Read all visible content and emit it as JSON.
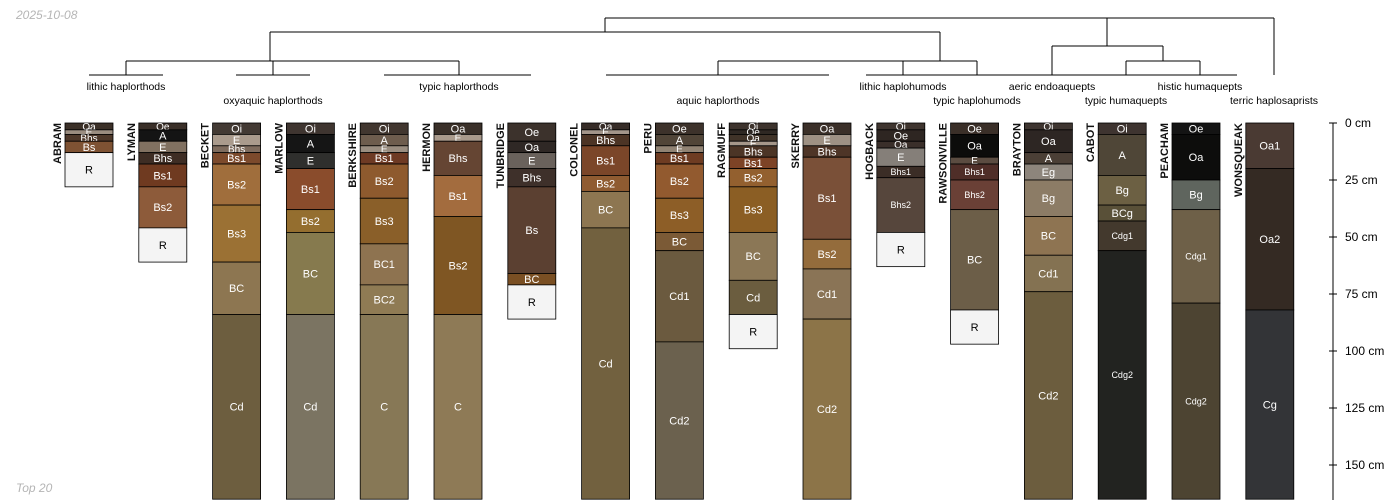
{
  "date_stamp": "2025-10-08",
  "footer_stamp": "Top 20",
  "depth_axis": {
    "unit": "cm",
    "max_depth": 165,
    "ticks": [
      {
        "depth": 0,
        "label": "0 cm"
      },
      {
        "depth": 25,
        "label": "25 cm"
      },
      {
        "depth": 50,
        "label": "50 cm"
      },
      {
        "depth": 75,
        "label": "75 cm"
      },
      {
        "depth": 100,
        "label": "100 cm"
      },
      {
        "depth": 125,
        "label": "125 cm"
      },
      {
        "depth": 150,
        "label": "150 cm"
      }
    ]
  },
  "dendrogram": {
    "groups": [
      {
        "label": "lithic haplorthods",
        "members": [
          "ABRAM",
          "LYMAN"
        ]
      },
      {
        "label": "oxyaquic haplorthods",
        "members": [
          "BECKET",
          "MARLOW"
        ]
      },
      {
        "label": "typic haplorthods",
        "members": [
          "BERKSHIRE",
          "HERMON",
          "TUNBRIDGE"
        ]
      },
      {
        "label": "aquic haplorthods",
        "members": [
          "COLONEL",
          "PERU",
          "RAGMUFF",
          "SKERRY"
        ]
      },
      {
        "label": "lithic haplohumods",
        "members": [
          "HOGBACK"
        ]
      },
      {
        "label": "typic haplohumods",
        "members": [
          "RAWSONVILLE"
        ]
      },
      {
        "label": "aeric endoaquepts",
        "members": [
          "BRAYTON"
        ]
      },
      {
        "label": "typic humaquepts",
        "members": [
          "CABOT"
        ]
      },
      {
        "label": "histic humaquepts",
        "members": [
          "PEACHAM"
        ]
      },
      {
        "label": "terric haplosaprists",
        "members": [
          "WONSQUEAK"
        ]
      }
    ]
  },
  "profiles": [
    {
      "name": "ABRAM",
      "horizons": [
        {
          "name": "Oa",
          "top": 0,
          "bottom": 3,
          "color": "#3b3028"
        },
        {
          "name": "E",
          "top": 3,
          "bottom": 5,
          "color": "#9b8d80"
        },
        {
          "name": "Bhs",
          "top": 5,
          "bottom": 8,
          "color": "#4e382a"
        },
        {
          "name": "Bs",
          "top": 8,
          "bottom": 13,
          "color": "#7e5233"
        },
        {
          "name": "R",
          "top": 13,
          "bottom": 28,
          "color": "#f4f4f4"
        }
      ]
    },
    {
      "name": "LYMAN",
      "horizons": [
        {
          "name": "Oe",
          "top": 0,
          "bottom": 3,
          "color": "#3a2f28"
        },
        {
          "name": "A",
          "top": 3,
          "bottom": 8,
          "color": "#141414"
        },
        {
          "name": "E",
          "top": 8,
          "bottom": 13,
          "color": "#817161"
        },
        {
          "name": "Bhs",
          "top": 13,
          "bottom": 18,
          "color": "#3e2d24"
        },
        {
          "name": "Bs1",
          "top": 18,
          "bottom": 28,
          "color": "#6f3a20"
        },
        {
          "name": "Bs2",
          "top": 28,
          "bottom": 46,
          "color": "#8d5b3a"
        },
        {
          "name": "R",
          "top": 46,
          "bottom": 61,
          "color": "#f4f4f4"
        }
      ]
    },
    {
      "name": "BECKET",
      "horizons": [
        {
          "name": "Oi",
          "top": 0,
          "bottom": 5,
          "color": "#433a34"
        },
        {
          "name": "E",
          "top": 5,
          "bottom": 10,
          "color": "#aa9b8d"
        },
        {
          "name": "Bhs",
          "top": 10,
          "bottom": 13,
          "color": "#7f6c5e"
        },
        {
          "name": "Bs1",
          "top": 13,
          "bottom": 18,
          "color": "#7c4a2c"
        },
        {
          "name": "Bs2",
          "top": 18,
          "bottom": 36,
          "color": "#a06e3c"
        },
        {
          "name": "Bs3",
          "top": 36,
          "bottom": 61,
          "color": "#9b7134"
        },
        {
          "name": "BC",
          "top": 61,
          "bottom": 84,
          "color": "#8d7651"
        },
        {
          "name": "Cd",
          "top": 84,
          "bottom": 165,
          "color": "#6d5e3f"
        }
      ]
    },
    {
      "name": "MARLOW",
      "horizons": [
        {
          "name": "Oi",
          "top": 0,
          "bottom": 5,
          "color": "#3f3530"
        },
        {
          "name": "A",
          "top": 5,
          "bottom": 13,
          "color": "#151515"
        },
        {
          "name": "E",
          "top": 13,
          "bottom": 20,
          "color": "#2f2f2d"
        },
        {
          "name": "Bs1",
          "top": 20,
          "bottom": 38,
          "color": "#8a4c2c"
        },
        {
          "name": "Bs2",
          "top": 38,
          "bottom": 48,
          "color": "#946e2f"
        },
        {
          "name": "BC",
          "top": 48,
          "bottom": 84,
          "color": "#867a4e"
        },
        {
          "name": "Cd",
          "top": 84,
          "bottom": 165,
          "color": "#7b7462"
        }
      ]
    },
    {
      "name": "BERKSHIRE",
      "horizons": [
        {
          "name": "Oi",
          "top": 0,
          "bottom": 5,
          "color": "#41362f"
        },
        {
          "name": "A",
          "top": 5,
          "bottom": 10,
          "color": "#6e5d4e"
        },
        {
          "name": "E",
          "top": 10,
          "bottom": 13,
          "color": "#9b8e81"
        },
        {
          "name": "Bs1",
          "top": 13,
          "bottom": 18,
          "color": "#6e3a24"
        },
        {
          "name": "Bs2",
          "top": 18,
          "bottom": 33,
          "color": "#8e5a2e"
        },
        {
          "name": "Bs3",
          "top": 33,
          "bottom": 53,
          "color": "#8a5f29"
        },
        {
          "name": "BC1",
          "top": 53,
          "bottom": 71,
          "color": "#8e7350"
        },
        {
          "name": "BC2",
          "top": 71,
          "bottom": 84,
          "color": "#8f7b54"
        },
        {
          "name": "C",
          "top": 84,
          "bottom": 165,
          "color": "#877856"
        }
      ]
    },
    {
      "name": "HERMON",
      "horizons": [
        {
          "name": "Oa",
          "top": 0,
          "bottom": 5,
          "color": "#3a3029"
        },
        {
          "name": "E",
          "top": 5,
          "bottom": 8,
          "color": "#a99a8c"
        },
        {
          "name": "Bhs",
          "top": 8,
          "bottom": 23,
          "color": "#654533"
        },
        {
          "name": "Bs1",
          "top": 23,
          "bottom": 41,
          "color": "#a36c3e"
        },
        {
          "name": "Bs2",
          "top": 41,
          "bottom": 84,
          "color": "#7f5623"
        },
        {
          "name": "C",
          "top": 84,
          "bottom": 165,
          "color": "#8e7a56"
        }
      ]
    },
    {
      "name": "TUNBRIDGE",
      "horizons": [
        {
          "name": "Oe",
          "top": 0,
          "bottom": 8,
          "color": "#3c322c"
        },
        {
          "name": "Oa",
          "top": 8,
          "bottom": 13,
          "color": "#2f2825"
        },
        {
          "name": "E",
          "top": 13,
          "bottom": 20,
          "color": "#6a625c"
        },
        {
          "name": "Bhs",
          "top": 20,
          "bottom": 28,
          "color": "#3e302a"
        },
        {
          "name": "Bs",
          "top": 28,
          "bottom": 66,
          "color": "#5b4031"
        },
        {
          "name": "BC",
          "top": 66,
          "bottom": 71,
          "color": "#7a4f23"
        },
        {
          "name": "R",
          "top": 71,
          "bottom": 86,
          "color": "#f4f4f4"
        }
      ]
    },
    {
      "name": "COLONEL",
      "horizons": [
        {
          "name": "Oa",
          "top": 0,
          "bottom": 3,
          "color": "#362c27"
        },
        {
          "name": "E",
          "top": 3,
          "bottom": 5,
          "color": "#a2958a"
        },
        {
          "name": "Bhs",
          "top": 5,
          "bottom": 10,
          "color": "#4c3425"
        },
        {
          "name": "Bs1",
          "top": 10,
          "bottom": 23,
          "color": "#7b4629"
        },
        {
          "name": "Bs2",
          "top": 23,
          "bottom": 30,
          "color": "#8f5b31"
        },
        {
          "name": "BC",
          "top": 30,
          "bottom": 46,
          "color": "#8d7651"
        },
        {
          "name": "Cd",
          "top": 46,
          "bottom": 165,
          "color": "#72613f"
        }
      ]
    },
    {
      "name": "PERU",
      "horizons": [
        {
          "name": "Oe",
          "top": 0,
          "bottom": 5,
          "color": "#3d322b"
        },
        {
          "name": "A",
          "top": 5,
          "bottom": 10,
          "color": "#514538"
        },
        {
          "name": "E",
          "top": 10,
          "bottom": 13,
          "color": "#918373"
        },
        {
          "name": "Bs1",
          "top": 13,
          "bottom": 18,
          "color": "#6e3c22"
        },
        {
          "name": "Bs2",
          "top": 18,
          "bottom": 33,
          "color": "#925a2f"
        },
        {
          "name": "Bs3",
          "top": 33,
          "bottom": 48,
          "color": "#8d5e27"
        },
        {
          "name": "BC",
          "top": 48,
          "bottom": 56,
          "color": "#7b5a36"
        },
        {
          "name": "Cd1",
          "top": 56,
          "bottom": 96,
          "color": "#6b5a3f"
        },
        {
          "name": "Cd2",
          "top": 96,
          "bottom": 165,
          "color": "#6b614e"
        }
      ]
    },
    {
      "name": "RAGMUFF",
      "horizons": [
        {
          "name": "Oi",
          "top": 0,
          "bottom": 3,
          "color": "#3d332d"
        },
        {
          "name": "Oe",
          "top": 3,
          "bottom": 5,
          "color": "#2f2823"
        },
        {
          "name": "Oa",
          "top": 5,
          "bottom": 8,
          "color": "#403328"
        },
        {
          "name": "E",
          "top": 8,
          "bottom": 10,
          "color": "#a5978a"
        },
        {
          "name": "Bhs",
          "top": 10,
          "bottom": 15,
          "color": "#4c3526"
        },
        {
          "name": "Bs1",
          "top": 15,
          "bottom": 20,
          "color": "#7d4326"
        },
        {
          "name": "Bs2",
          "top": 20,
          "bottom": 28,
          "color": "#93602f"
        },
        {
          "name": "Bs3",
          "top": 28,
          "bottom": 48,
          "color": "#8b5e24"
        },
        {
          "name": "BC",
          "top": 48,
          "bottom": 69,
          "color": "#8b7756"
        },
        {
          "name": "Cd",
          "top": 69,
          "bottom": 84,
          "color": "#6b5d3f"
        },
        {
          "name": "R",
          "top": 84,
          "bottom": 99,
          "color": "#f4f4f4"
        }
      ]
    },
    {
      "name": "SKERRY",
      "horizons": [
        {
          "name": "Oa",
          "top": 0,
          "bottom": 5,
          "color": "#3b3029"
        },
        {
          "name": "E",
          "top": 5,
          "bottom": 10,
          "color": "#9e9184"
        },
        {
          "name": "Bhs",
          "top": 10,
          "bottom": 15,
          "color": "#4e3527"
        },
        {
          "name": "Bs1",
          "top": 15,
          "bottom": 51,
          "color": "#7a5038"
        },
        {
          "name": "Bs2",
          "top": 51,
          "bottom": 64,
          "color": "#946c3c"
        },
        {
          "name": "Cd1",
          "top": 64,
          "bottom": 86,
          "color": "#8a7456"
        },
        {
          "name": "Cd2",
          "top": 86,
          "bottom": 165,
          "color": "#8c7448"
        }
      ]
    },
    {
      "name": "HOGBACK",
      "horizons": [
        {
          "name": "Oi",
          "top": 0,
          "bottom": 3,
          "color": "#3f352f"
        },
        {
          "name": "Oe",
          "top": 3,
          "bottom": 8,
          "color": "#2e2622"
        },
        {
          "name": "Oa",
          "top": 8,
          "bottom": 11,
          "color": "#3a2f2a"
        },
        {
          "name": "E",
          "top": 11,
          "bottom": 19,
          "color": "#857f79"
        },
        {
          "name": "Bhs1",
          "top": 19,
          "bottom": 24,
          "color": "#3b2d26"
        },
        {
          "name": "Bhs2",
          "top": 24,
          "bottom": 48,
          "color": "#56463c"
        },
        {
          "name": "R",
          "top": 48,
          "bottom": 63,
          "color": "#f4f4f4"
        }
      ]
    },
    {
      "name": "RAWSONVILLE",
      "horizons": [
        {
          "name": "Oe",
          "top": 0,
          "bottom": 5,
          "color": "#3a2f28"
        },
        {
          "name": "Oa",
          "top": 5,
          "bottom": 15,
          "color": "#0c0c0b"
        },
        {
          "name": "E",
          "top": 15,
          "bottom": 18,
          "color": "#5b4c41"
        },
        {
          "name": "Bhs1",
          "top": 18,
          "bottom": 25,
          "color": "#4f2e28"
        },
        {
          "name": "Bhs2",
          "top": 25,
          "bottom": 38,
          "color": "#6a4036"
        },
        {
          "name": "BC",
          "top": 38,
          "bottom": 82,
          "color": "#6c5e48"
        },
        {
          "name": "R",
          "top": 82,
          "bottom": 97,
          "color": "#f4f4f4"
        }
      ]
    },
    {
      "name": "BRAYTON",
      "horizons": [
        {
          "name": "Oi",
          "top": 0,
          "bottom": 3,
          "color": "#3e3530"
        },
        {
          "name": "Oa",
          "top": 3,
          "bottom": 13,
          "color": "#2d2623"
        },
        {
          "name": "A",
          "top": 13,
          "bottom": 18,
          "color": "#4b3f36"
        },
        {
          "name": "Eg",
          "top": 18,
          "bottom": 25,
          "color": "#8d857c"
        },
        {
          "name": "Bg",
          "top": 25,
          "bottom": 41,
          "color": "#8c7c66"
        },
        {
          "name": "BC",
          "top": 41,
          "bottom": 58,
          "color": "#8e7452"
        },
        {
          "name": "Cd1",
          "top": 58,
          "bottom": 74,
          "color": "#847252"
        },
        {
          "name": "Cd2",
          "top": 74,
          "bottom": 165,
          "color": "#6c5d3e"
        }
      ]
    },
    {
      "name": "CABOT",
      "horizons": [
        {
          "name": "Oi",
          "top": 0,
          "bottom": 5,
          "color": "#3e3430"
        },
        {
          "name": "A",
          "top": 5,
          "bottom": 23,
          "color": "#4f4637"
        },
        {
          "name": "Bg",
          "top": 23,
          "bottom": 36,
          "color": "#6c6043"
        },
        {
          "name": "BCg",
          "top": 36,
          "bottom": 43,
          "color": "#595038"
        },
        {
          "name": "Cdg1",
          "top": 43,
          "bottom": 56,
          "color": "#43392d"
        },
        {
          "name": "Cdg2",
          "top": 56,
          "bottom": 165,
          "color": "#222320"
        }
      ]
    },
    {
      "name": "PEACHAM",
      "horizons": [
        {
          "name": "Oe",
          "top": 0,
          "bottom": 5,
          "color": "#141414"
        },
        {
          "name": "Oa",
          "top": 5,
          "bottom": 25,
          "color": "#0d0d0c"
        },
        {
          "name": "Bg",
          "top": 25,
          "bottom": 38,
          "color": "#5f655e"
        },
        {
          "name": "Cdg1",
          "top": 38,
          "bottom": 79,
          "color": "#6e6048"
        },
        {
          "name": "Cdg2",
          "top": 79,
          "bottom": 165,
          "color": "#4d4432"
        }
      ]
    },
    {
      "name": "WONSQUEAK",
      "horizons": [
        {
          "name": "Oa1",
          "top": 0,
          "bottom": 20,
          "color": "#4a3a33"
        },
        {
          "name": "Oa2",
          "top": 20,
          "bottom": 82,
          "color": "#342a23"
        },
        {
          "name": "Cg",
          "top": 82,
          "bottom": 165,
          "color": "#333437"
        }
      ]
    }
  ]
}
